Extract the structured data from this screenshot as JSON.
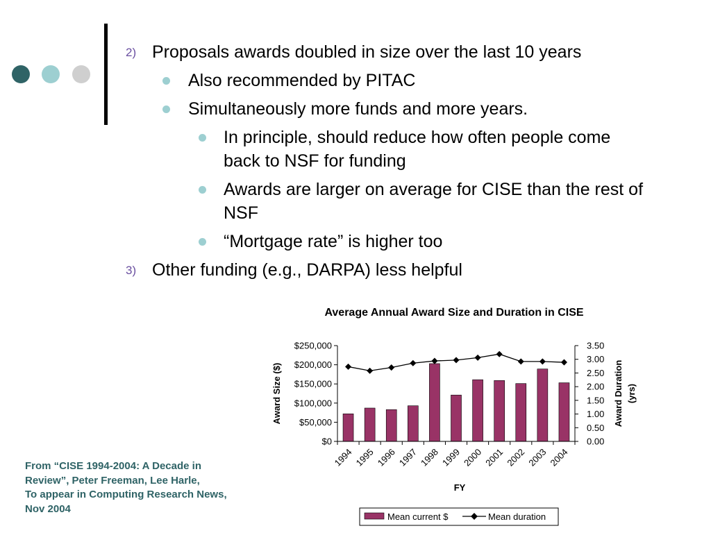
{
  "slide": {
    "items": [
      {
        "num": "2)",
        "text": "Proposals awards doubled in size over the last 10 years"
      },
      {
        "text": "Also recommended by PITAC"
      },
      {
        "text": "Simultaneously more funds and more years."
      },
      {
        "text1": "In principle, should reduce how often people come",
        "text2": "back to NSF for funding"
      },
      {
        "text1": "Awards are larger on average for CISE than the rest of",
        "text2": "NSF"
      },
      {
        "text": "“Mortgage rate” is higher too"
      },
      {
        "num": "3)",
        "text": "Other funding (e.g., DARPA) less helpful"
      }
    ]
  },
  "citation": {
    "line1": "From “CISE 1994-2004: A Decade in",
    "line2": "Review”, Peter Freeman, Lee Harle,",
    "line3": "To appear in Computing Research News,",
    "line4": "Nov 2004"
  },
  "colors": {
    "bar": "#993366",
    "accent_dark": "#2f6366",
    "accent_light": "#9dcfd1",
    "accent_gray": "#cfcfcf",
    "numbering": "#6a4fa0"
  },
  "chart_data": {
    "type": "bar",
    "title": "Average Annual Award Size and Duration in CISE",
    "xlabel": "FY",
    "ylabel": "Award Size ($)",
    "ylabel2_line1": "Award Duration",
    "ylabel2_line2": "(yrs)",
    "categories": [
      "1994",
      "1995",
      "1996",
      "1997",
      "1998",
      "1999",
      "2000",
      "2001",
      "2002",
      "2003",
      "2004"
    ],
    "ylim": [
      0,
      250000
    ],
    "y_ticks": [
      "$0",
      "$50,000",
      "$100,000",
      "$150,000",
      "$200,000",
      "$250,000"
    ],
    "y2lim": [
      0,
      3.5
    ],
    "y2_ticks": [
      "0.00",
      "0.50",
      "1.00",
      "1.50",
      "2.00",
      "2.50",
      "3.00",
      "3.50"
    ],
    "legend_position": "bottom",
    "grid": false,
    "series": [
      {
        "name": "Mean current $",
        "type": "bar",
        "axis": "left",
        "values": [
          72000,
          87000,
          83000,
          93000,
          203000,
          121000,
          161000,
          159000,
          151000,
          189000,
          153000
        ]
      },
      {
        "name": "Mean duration",
        "type": "line",
        "axis": "right",
        "values": [
          2.73,
          2.58,
          2.7,
          2.86,
          2.94,
          2.97,
          3.06,
          3.19,
          2.92,
          2.92,
          2.89
        ]
      }
    ]
  }
}
